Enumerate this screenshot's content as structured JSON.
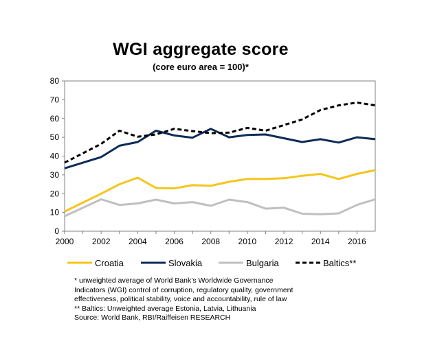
{
  "title": "WGI aggregate score",
  "subtitle": "(core euro area = 100)*",
  "chart_data": {
    "type": "line",
    "title": "WGI aggregate score",
    "subtitle": "(core euro area = 100)*",
    "xlabel": "",
    "ylabel": "",
    "xlim": [
      2000,
      2017
    ],
    "ylim": [
      0,
      80
    ],
    "x_ticks": [
      "2000",
      "2002",
      "2004",
      "2006",
      "2008",
      "2010",
      "2012",
      "2014",
      "2016"
    ],
    "y_ticks": [
      "0",
      "10",
      "20",
      "30",
      "40",
      "50",
      "60",
      "70",
      "80"
    ],
    "grid": false,
    "legend_position": "bottom",
    "x": [
      2000,
      2002,
      2003,
      2004,
      2005,
      2006,
      2007,
      2008,
      2009,
      2010,
      2011,
      2012,
      2013,
      2014,
      2015,
      2016,
      2017
    ],
    "series": [
      {
        "name": "Croatia",
        "color": "#f5c518",
        "dash": "solid",
        "values": [
          10.5,
          20,
          25,
          28.5,
          23,
          22.8,
          24.5,
          24.2,
          26.3,
          27.8,
          27.8,
          28.2,
          29.5,
          30.5,
          27.8,
          30.5,
          32.5
        ]
      },
      {
        "name": "Slovakia",
        "color": "#0d2b57",
        "dash": "solid",
        "values": [
          33.5,
          39.5,
          45.5,
          47.5,
          53.5,
          51,
          49.8,
          54.5,
          50,
          51.2,
          51.5,
          49.5,
          47.5,
          49,
          47.2,
          50,
          49
        ]
      },
      {
        "name": "Bulgaria",
        "color": "#bfbfbf",
        "dash": "solid",
        "values": [
          8,
          17,
          14,
          14.8,
          16.8,
          14.8,
          15.5,
          13.5,
          16.8,
          15.5,
          12,
          12.5,
          9.3,
          9,
          9.5,
          14,
          17
        ]
      },
      {
        "name": "Baltics**",
        "color": "#000000",
        "dash": "dashed",
        "values": [
          36.5,
          46.5,
          53.5,
          50.3,
          51.5,
          54.5,
          53.3,
          52.2,
          52.5,
          55,
          53.5,
          56.5,
          59.5,
          64.5,
          67,
          68.5,
          67
        ]
      }
    ]
  },
  "footnotes": [
    "* unweighted average of World Bank’s Worldwide Governance",
    "Indicators (WGI) control of corruption, regulatory quality, government",
    "effectiveness, political stability, voice and accountability, rule of law",
    "** Baltics: Unweighted average Estonia, Latvia, Lithuania",
    "Source: World Bank, RBI/Raiffeisen RESEARCH"
  ]
}
